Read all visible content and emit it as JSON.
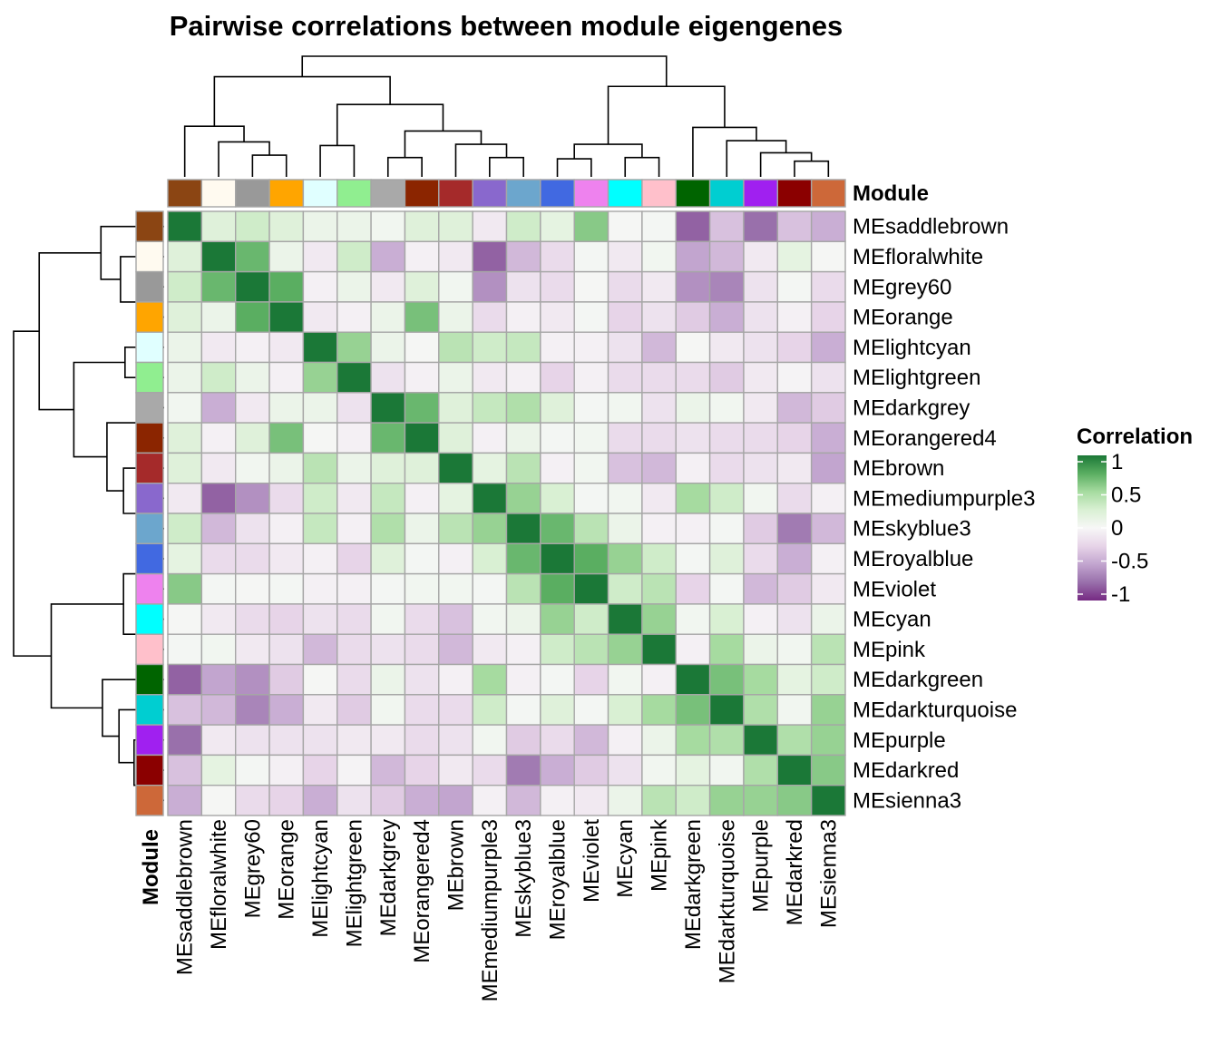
{
  "chart_data": {
    "type": "heatmap",
    "title": "Pairwise correlations between module eigengenes",
    "annotation_label": "Module",
    "legend": {
      "title": "Correlation",
      "position": "right",
      "ticks": [
        1,
        0.5,
        0,
        -0.5,
        -1
      ],
      "tick_labels": [
        "1",
        "0.5",
        "0",
        "-0.5",
        "-1"
      ],
      "colors": [
        "#762a83",
        "#9970ab",
        "#c2a5cf",
        "#e7d4e8",
        "#f7f7f7",
        "#d9f0d3",
        "#a6dba0",
        "#5aae61",
        "#1b7837"
      ]
    },
    "labels": [
      "MEsaddlebrown",
      "MEfloralwhite",
      "MEgrey60",
      "MEorange",
      "MElightcyan",
      "MElightgreen",
      "MEdarkgrey",
      "MEorangered4",
      "MEbrown",
      "MEmediumpurple3",
      "MEskyblue3",
      "MEroyalblue",
      "MEviolet",
      "MEcyan",
      "MEpink",
      "MEdarkgreen",
      "MEdarkturquoise",
      "MEpurple",
      "MEdarkred",
      "MEsienna3"
    ],
    "module_colors": [
      "#8b4513",
      "#fffaf0",
      "#999999",
      "#ffa500",
      "#e0ffff",
      "#90ee90",
      "#a9a9a9",
      "#8b2500",
      "#a52a2a",
      "#8968cd",
      "#6ca6cd",
      "#4169e1",
      "#ee82ee",
      "#00ffff",
      "#ffc0cb",
      "#006400",
      "#00ced1",
      "#a020f0",
      "#8b0000",
      "#cd6839"
    ],
    "matrix": [
      [
        1,
        0.2,
        0.3,
        0.2,
        0.1,
        0.1,
        0.05,
        0.2,
        0.2,
        -0.1,
        0.3,
        0.15,
        0.6,
        0.02,
        0.03,
        -0.8,
        -0.35,
        -0.75,
        -0.35,
        -0.45
      ],
      [
        0.2,
        1,
        0.7,
        0.1,
        -0.1,
        0.3,
        -0.45,
        -0.05,
        -0.1,
        -0.8,
        -0.4,
        -0.2,
        0.03,
        -0.1,
        0.05,
        -0.5,
        -0.4,
        -0.1,
        0.15,
        0.02
      ],
      [
        0.3,
        0.7,
        1,
        0.75,
        -0.05,
        0.1,
        -0.1,
        0.2,
        0.05,
        -0.6,
        -0.15,
        -0.2,
        0.02,
        -0.2,
        -0.1,
        -0.6,
        -0.65,
        -0.15,
        0.03,
        -0.2
      ],
      [
        0.2,
        0.1,
        0.75,
        1,
        -0.1,
        -0.05,
        0.1,
        0.65,
        0.1,
        -0.2,
        -0.05,
        -0.1,
        0.03,
        -0.25,
        -0.15,
        -0.3,
        -0.45,
        -0.15,
        -0.05,
        -0.25
      ],
      [
        0.1,
        -0.1,
        -0.05,
        -0.1,
        1,
        0.55,
        0.1,
        0.02,
        0.4,
        0.3,
        0.35,
        -0.05,
        -0.05,
        -0.15,
        -0.4,
        0.02,
        -0.1,
        -0.15,
        -0.25,
        -0.45
      ],
      [
        0.1,
        0.3,
        0.1,
        -0.05,
        0.55,
        1,
        -0.15,
        -0.05,
        0.1,
        -0.1,
        -0.05,
        -0.25,
        -0.05,
        -0.2,
        -0.2,
        -0.2,
        -0.3,
        -0.1,
        -0.03,
        -0.15
      ],
      [
        0.05,
        -0.45,
        -0.1,
        0.1,
        0.1,
        -0.15,
        1,
        0.7,
        0.2,
        0.35,
        0.45,
        0.2,
        0.03,
        0.05,
        -0.15,
        0.1,
        0.05,
        -0.1,
        -0.4,
        -0.3
      ],
      [
        0.2,
        -0.05,
        0.2,
        0.65,
        0.02,
        -0.05,
        0.7,
        1,
        0.2,
        -0.05,
        0.1,
        0.03,
        0.05,
        -0.2,
        -0.2,
        -0.15,
        -0.2,
        -0.2,
        -0.25,
        -0.45
      ],
      [
        0.2,
        -0.1,
        0.05,
        0.1,
        0.4,
        0.1,
        0.2,
        0.2,
        1,
        0.15,
        0.4,
        -0.05,
        0.05,
        -0.35,
        -0.4,
        -0.05,
        -0.2,
        -0.15,
        -0.1,
        -0.5
      ],
      [
        -0.1,
        -0.8,
        -0.6,
        -0.2,
        0.3,
        -0.1,
        0.35,
        -0.05,
        0.15,
        1,
        0.55,
        0.25,
        0.03,
        0.05,
        -0.1,
        0.5,
        0.3,
        0.05,
        -0.2,
        -0.05
      ],
      [
        0.3,
        -0.4,
        -0.15,
        -0.05,
        0.35,
        -0.05,
        0.45,
        0.1,
        0.4,
        0.55,
        1,
        0.7,
        0.4,
        0.1,
        -0.05,
        -0.05,
        0.03,
        -0.3,
        -0.7,
        -0.4
      ],
      [
        0.15,
        -0.2,
        -0.2,
        -0.1,
        -0.05,
        -0.25,
        0.2,
        0.03,
        -0.05,
        0.25,
        0.7,
        1,
        0.75,
        0.55,
        0.3,
        0.03,
        0.2,
        -0.2,
        -0.45,
        -0.05
      ],
      [
        0.6,
        0.03,
        0.02,
        0.03,
        -0.05,
        -0.05,
        0.03,
        0.05,
        0.05,
        0.03,
        0.4,
        0.75,
        1,
        0.3,
        0.4,
        -0.25,
        0.03,
        -0.4,
        -0.3,
        -0.1
      ],
      [
        0.02,
        -0.1,
        -0.2,
        -0.25,
        -0.15,
        -0.2,
        0.05,
        -0.2,
        -0.35,
        0.05,
        0.1,
        0.55,
        0.3,
        1,
        0.55,
        0.05,
        0.25,
        -0.05,
        -0.15,
        0.1
      ],
      [
        0.03,
        0.05,
        -0.1,
        -0.15,
        -0.4,
        -0.2,
        -0.15,
        -0.2,
        -0.4,
        -0.1,
        -0.05,
        0.3,
        0.4,
        0.55,
        1,
        -0.05,
        0.5,
        0.1,
        0.05,
        0.4
      ],
      [
        -0.8,
        -0.5,
        -0.6,
        -0.3,
        0.02,
        -0.2,
        0.1,
        -0.15,
        -0.05,
        0.5,
        -0.05,
        0.03,
        -0.25,
        0.05,
        -0.05,
        1,
        0.65,
        0.5,
        0.15,
        0.3
      ],
      [
        -0.35,
        -0.4,
        -0.65,
        -0.45,
        -0.1,
        -0.3,
        0.05,
        -0.2,
        -0.2,
        0.3,
        0.03,
        0.2,
        0.03,
        0.25,
        0.5,
        0.65,
        1,
        0.45,
        0.05,
        0.55
      ],
      [
        -0.75,
        -0.1,
        -0.15,
        -0.15,
        -0.15,
        -0.1,
        -0.1,
        -0.2,
        -0.15,
        0.05,
        -0.3,
        -0.2,
        -0.4,
        -0.05,
        0.1,
        0.5,
        0.45,
        1,
        0.45,
        0.55
      ],
      [
        -0.35,
        0.15,
        0.03,
        -0.05,
        -0.25,
        -0.03,
        -0.4,
        -0.25,
        -0.1,
        -0.2,
        -0.7,
        -0.45,
        -0.3,
        -0.15,
        0.05,
        0.15,
        0.05,
        0.45,
        1,
        0.6
      ],
      [
        -0.45,
        0.02,
        -0.2,
        -0.25,
        -0.45,
        -0.15,
        -0.3,
        -0.45,
        -0.5,
        -0.05,
        -0.4,
        -0.05,
        -0.1,
        0.1,
        0.4,
        0.3,
        0.55,
        0.55,
        0.6,
        1
      ]
    ],
    "dendrogram_merges": [
      [
        2,
        3
      ],
      [
        4,
        5
      ],
      [
        18,
        19
      ],
      [
        6,
        7
      ],
      [
        11,
        12
      ],
      [
        17,
        18
      ],
      [
        9,
        10
      ],
      [
        1,
        2
      ],
      [
        16,
        17
      ],
      [
        13,
        14
      ],
      [
        8,
        9
      ],
      [
        11,
        13
      ],
      [
        0,
        1
      ],
      [
        6,
        8
      ],
      [
        15,
        16
      ],
      [
        4,
        6
      ],
      [
        11,
        15
      ],
      [
        0,
        4
      ],
      [
        0,
        11
      ]
    ],
    "dendrogram_heights": [
      0.18,
      0.26,
      0.13,
      0.16,
      0.15,
      0.2,
      0.16,
      0.29,
      0.3,
      0.16,
      0.27,
      0.27,
      0.42,
      0.38,
      0.41,
      0.6,
      0.75,
      0.83,
      1.0
    ]
  }
}
